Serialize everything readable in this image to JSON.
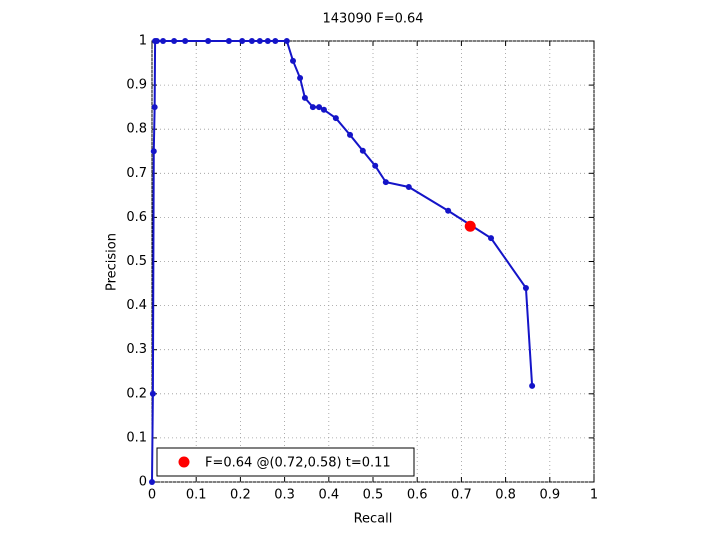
{
  "chart_data": {
    "type": "line",
    "title": "143090 F=0.64",
    "x_label": "Recall",
    "y_label": "Precision",
    "xlim": [
      0,
      1
    ],
    "ylim": [
      0,
      1
    ],
    "xticks": [
      0,
      0.1,
      0.2,
      0.3,
      0.4,
      0.5,
      0.6,
      0.7,
      0.8,
      0.9,
      1
    ],
    "yticks": [
      0,
      0.1,
      0.2,
      0.3,
      0.4,
      0.5,
      0.6,
      0.7,
      0.8,
      0.9,
      1
    ],
    "grid": true,
    "legend": "lower left",
    "series": [
      {
        "color": "#1414c8",
        "x": [
          0,
          0.002,
          0.004,
          0.006,
          0.007,
          0.011,
          0.025,
          0.05,
          0.075,
          0.127,
          0.174,
          0.204,
          0.226,
          0.244,
          0.262,
          0.279,
          0.305,
          0.319,
          0.335,
          0.346,
          0.364,
          0.378,
          0.389,
          0.416,
          0.448,
          0.477,
          0.505,
          0.529,
          0.581,
          0.67,
          0.767,
          0.846,
          0.86
        ],
        "values": [
          0,
          0.2,
          0.75,
          0.85,
          1,
          1,
          1,
          1,
          1,
          1,
          1,
          1,
          1,
          1,
          1,
          1,
          1,
          0.955,
          0.916,
          0.871,
          0.85,
          0.85,
          0.844,
          0.825,
          0.787,
          0.751,
          0.717,
          0.68,
          0.669,
          0.615,
          0.553,
          0.44,
          0.218
        ]
      },
      {
        "name": "F=0.64 @(0.72,0.58) t=0.11",
        "color": "#ff0000",
        "x": [
          0.72
        ],
        "values": [
          0.58
        ]
      }
    ]
  }
}
